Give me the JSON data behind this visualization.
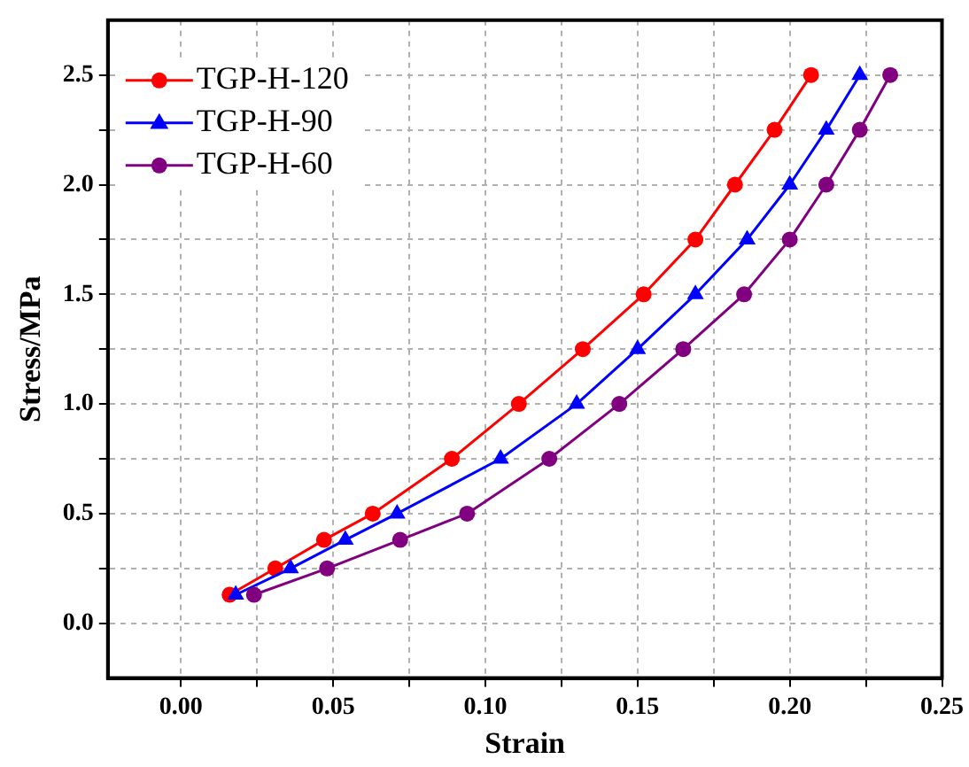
{
  "chart_data": {
    "type": "line",
    "xlabel": "Strain",
    "ylabel": "Stress/MPa",
    "xlim": [
      -0.024,
      0.25
    ],
    "ylim": [
      -0.25,
      2.75
    ],
    "xticks": [
      {
        "value": 0,
        "label": "0.00"
      },
      {
        "value": 0.025,
        "label": null
      },
      0.05,
      {
        "value": 0.075,
        "label": null
      },
      {
        "value": 0.1,
        "label": "0.10"
      },
      {
        "value": 0.125,
        "label": null
      },
      0.15,
      {
        "value": 0.175,
        "label": null
      },
      {
        "value": 0.2,
        "label": "0.20"
      },
      {
        "value": 0.225,
        "label": null
      },
      0.25
    ],
    "yticks": [
      {
        "value": 0,
        "label": "0.0"
      },
      {
        "value": 0.25,
        "label": null
      },
      0.5,
      {
        "value": 0.75,
        "label": null
      },
      {
        "value": 1,
        "label": "1.0"
      },
      {
        "value": 1.25,
        "label": null
      },
      1.5,
      {
        "value": 1.75,
        "label": null
      },
      {
        "value": 2,
        "label": "2.0"
      },
      {
        "value": 2.25,
        "label": null
      },
      2.5
    ],
    "grid": true,
    "legend": "top left",
    "line_style": "solid",
    "series": [
      {
        "name": "TGP-H-120",
        "color": "#ff0000",
        "marker": "circle",
        "x": [
          0.016,
          0.031,
          0.047,
          0.063,
          0.089,
          0.111,
          0.132,
          0.152,
          0.169,
          0.182,
          0.195,
          0.207
        ],
        "values": [
          0.13,
          0.25,
          0.38,
          0.5,
          0.75,
          1.0,
          1.25,
          1.5,
          1.75,
          2.0,
          2.25,
          2.5
        ]
      },
      {
        "name": "TGP-H-90",
        "color": "#0000ff",
        "marker": "triangle",
        "x": [
          0.018,
          0.036,
          0.054,
          0.071,
          0.105,
          0.13,
          0.15,
          0.169,
          0.186,
          0.2,
          0.212,
          0.223
        ],
        "values": [
          0.13,
          0.25,
          0.38,
          0.5,
          0.75,
          1.0,
          1.25,
          1.5,
          1.75,
          2.0,
          2.25,
          2.5
        ]
      },
      {
        "name": "TGP-H-60",
        "color": "#800080",
        "marker": "circle",
        "x": [
          0.024,
          0.048,
          0.072,
          0.094,
          0.121,
          0.144,
          0.165,
          0.185,
          0.2,
          0.212,
          0.223,
          0.233
        ],
        "values": [
          0.13,
          0.25,
          0.38,
          0.5,
          0.75,
          1.0,
          1.25,
          1.5,
          1.75,
          2.0,
          2.25,
          2.5
        ]
      }
    ]
  }
}
